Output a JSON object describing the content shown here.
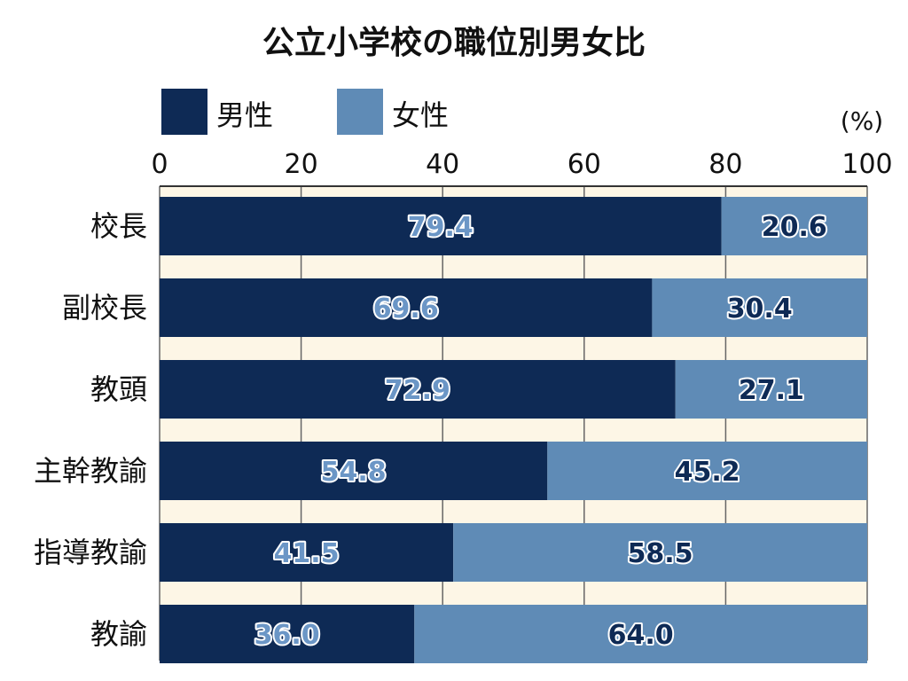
{
  "chart_data": {
    "type": "bar",
    "orientation": "horizontal",
    "stacked": true,
    "title": "公立小学校の職位別男女比",
    "unit": "(%)",
    "xlim": [
      0,
      100
    ],
    "ticks": [
      "0",
      "20",
      "40",
      "60",
      "80",
      "100"
    ],
    "grid": true,
    "legend_position": "top-left",
    "categories": [
      "校長",
      "副校長",
      "教頭",
      "主幹教諭",
      "指導教諭",
      "教諭"
    ],
    "series": [
      {
        "name": "男性",
        "color": "#0e2a55",
        "label_color": "#6b96c6",
        "values": [
          79.4,
          69.6,
          72.9,
          54.8,
          41.5,
          36.0
        ]
      },
      {
        "name": "女性",
        "color": "#5f8bb6",
        "label_color": "#0e2a55",
        "values": [
          20.6,
          30.4,
          27.1,
          45.2,
          58.5,
          64.0
        ]
      }
    ],
    "plot_background": "#fdf6e6"
  }
}
